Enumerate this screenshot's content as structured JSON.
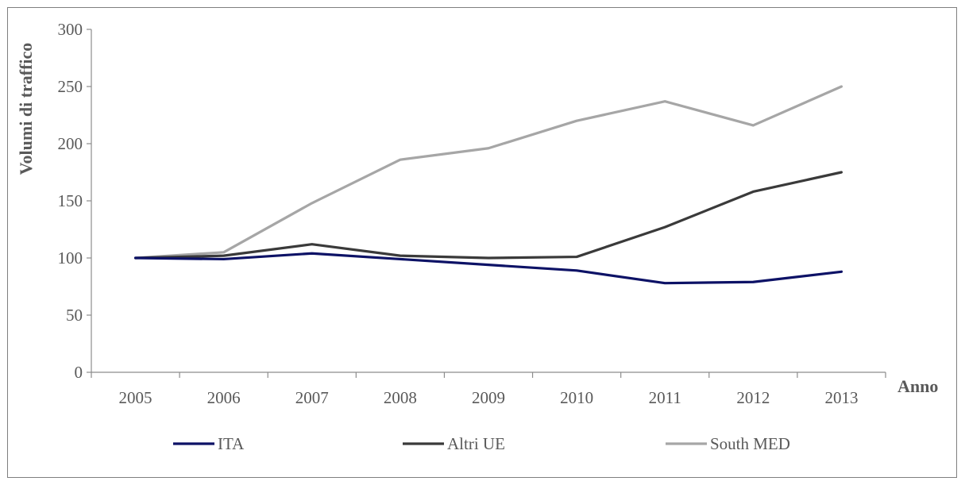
{
  "chart_data": {
    "type": "line",
    "title": "",
    "xlabel": "Anno",
    "ylabel": "Volumi di traffico",
    "ylim": [
      0,
      300
    ],
    "yticks": [
      "0",
      "50",
      "100",
      "150",
      "200",
      "250",
      "300"
    ],
    "categories": [
      "2005",
      "2006",
      "2007",
      "2008",
      "2009",
      "2010",
      "2011",
      "2012",
      "2013"
    ],
    "grid": false,
    "legend_position": "bottom",
    "series": [
      {
        "name": "ITA",
        "color": "#0d1266",
        "values": [
          100,
          99,
          104,
          99,
          94,
          89,
          78,
          79,
          88
        ]
      },
      {
        "name": "Altri UE",
        "color": "#3a3a3a",
        "values": [
          100,
          102,
          112,
          102,
          100,
          101,
          127,
          158,
          175
        ]
      },
      {
        "name": "South MED",
        "color": "#a6a6a6",
        "values": [
          100,
          105,
          148,
          186,
          196,
          220,
          237,
          216,
          250
        ]
      }
    ]
  }
}
